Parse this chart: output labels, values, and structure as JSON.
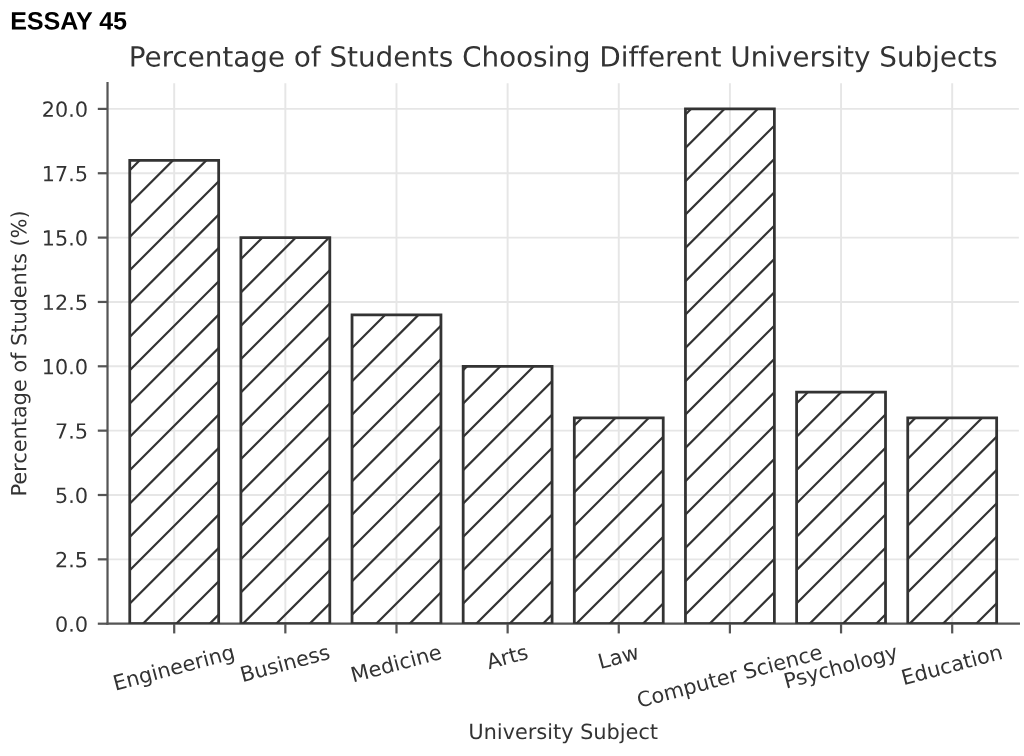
{
  "chart_data": {
    "type": "bar",
    "title": "Percentage of Students Choosing Different University Subjects",
    "xlabel": "University Subject",
    "ylabel": "Percentage of Students (%)",
    "annotations": [
      "ESSAY 45"
    ],
    "categories": [
      "Engineering",
      "Business",
      "Medicine",
      "Arts",
      "Law",
      "Computer Science",
      "Psychology",
      "Education"
    ],
    "values": [
      18,
      15,
      12,
      10,
      8,
      20,
      9,
      8
    ],
    "color": "#333333",
    "ylim": [
      0,
      21
    ],
    "yticks": [
      {
        "value": 0,
        "label": "0.0"
      },
      {
        "value": 2.5,
        "label": "2.5"
      },
      {
        "value": 5,
        "label": "5.0"
      },
      {
        "value": 7.5,
        "label": "7.5"
      },
      {
        "value": 10,
        "label": "10.0"
      },
      {
        "value": 12.5,
        "label": "12.5"
      },
      {
        "value": 15,
        "label": "15.0"
      },
      {
        "value": 17.5,
        "label": "17.5"
      },
      {
        "value": 20,
        "label": "20.0"
      }
    ],
    "grid": true
  }
}
